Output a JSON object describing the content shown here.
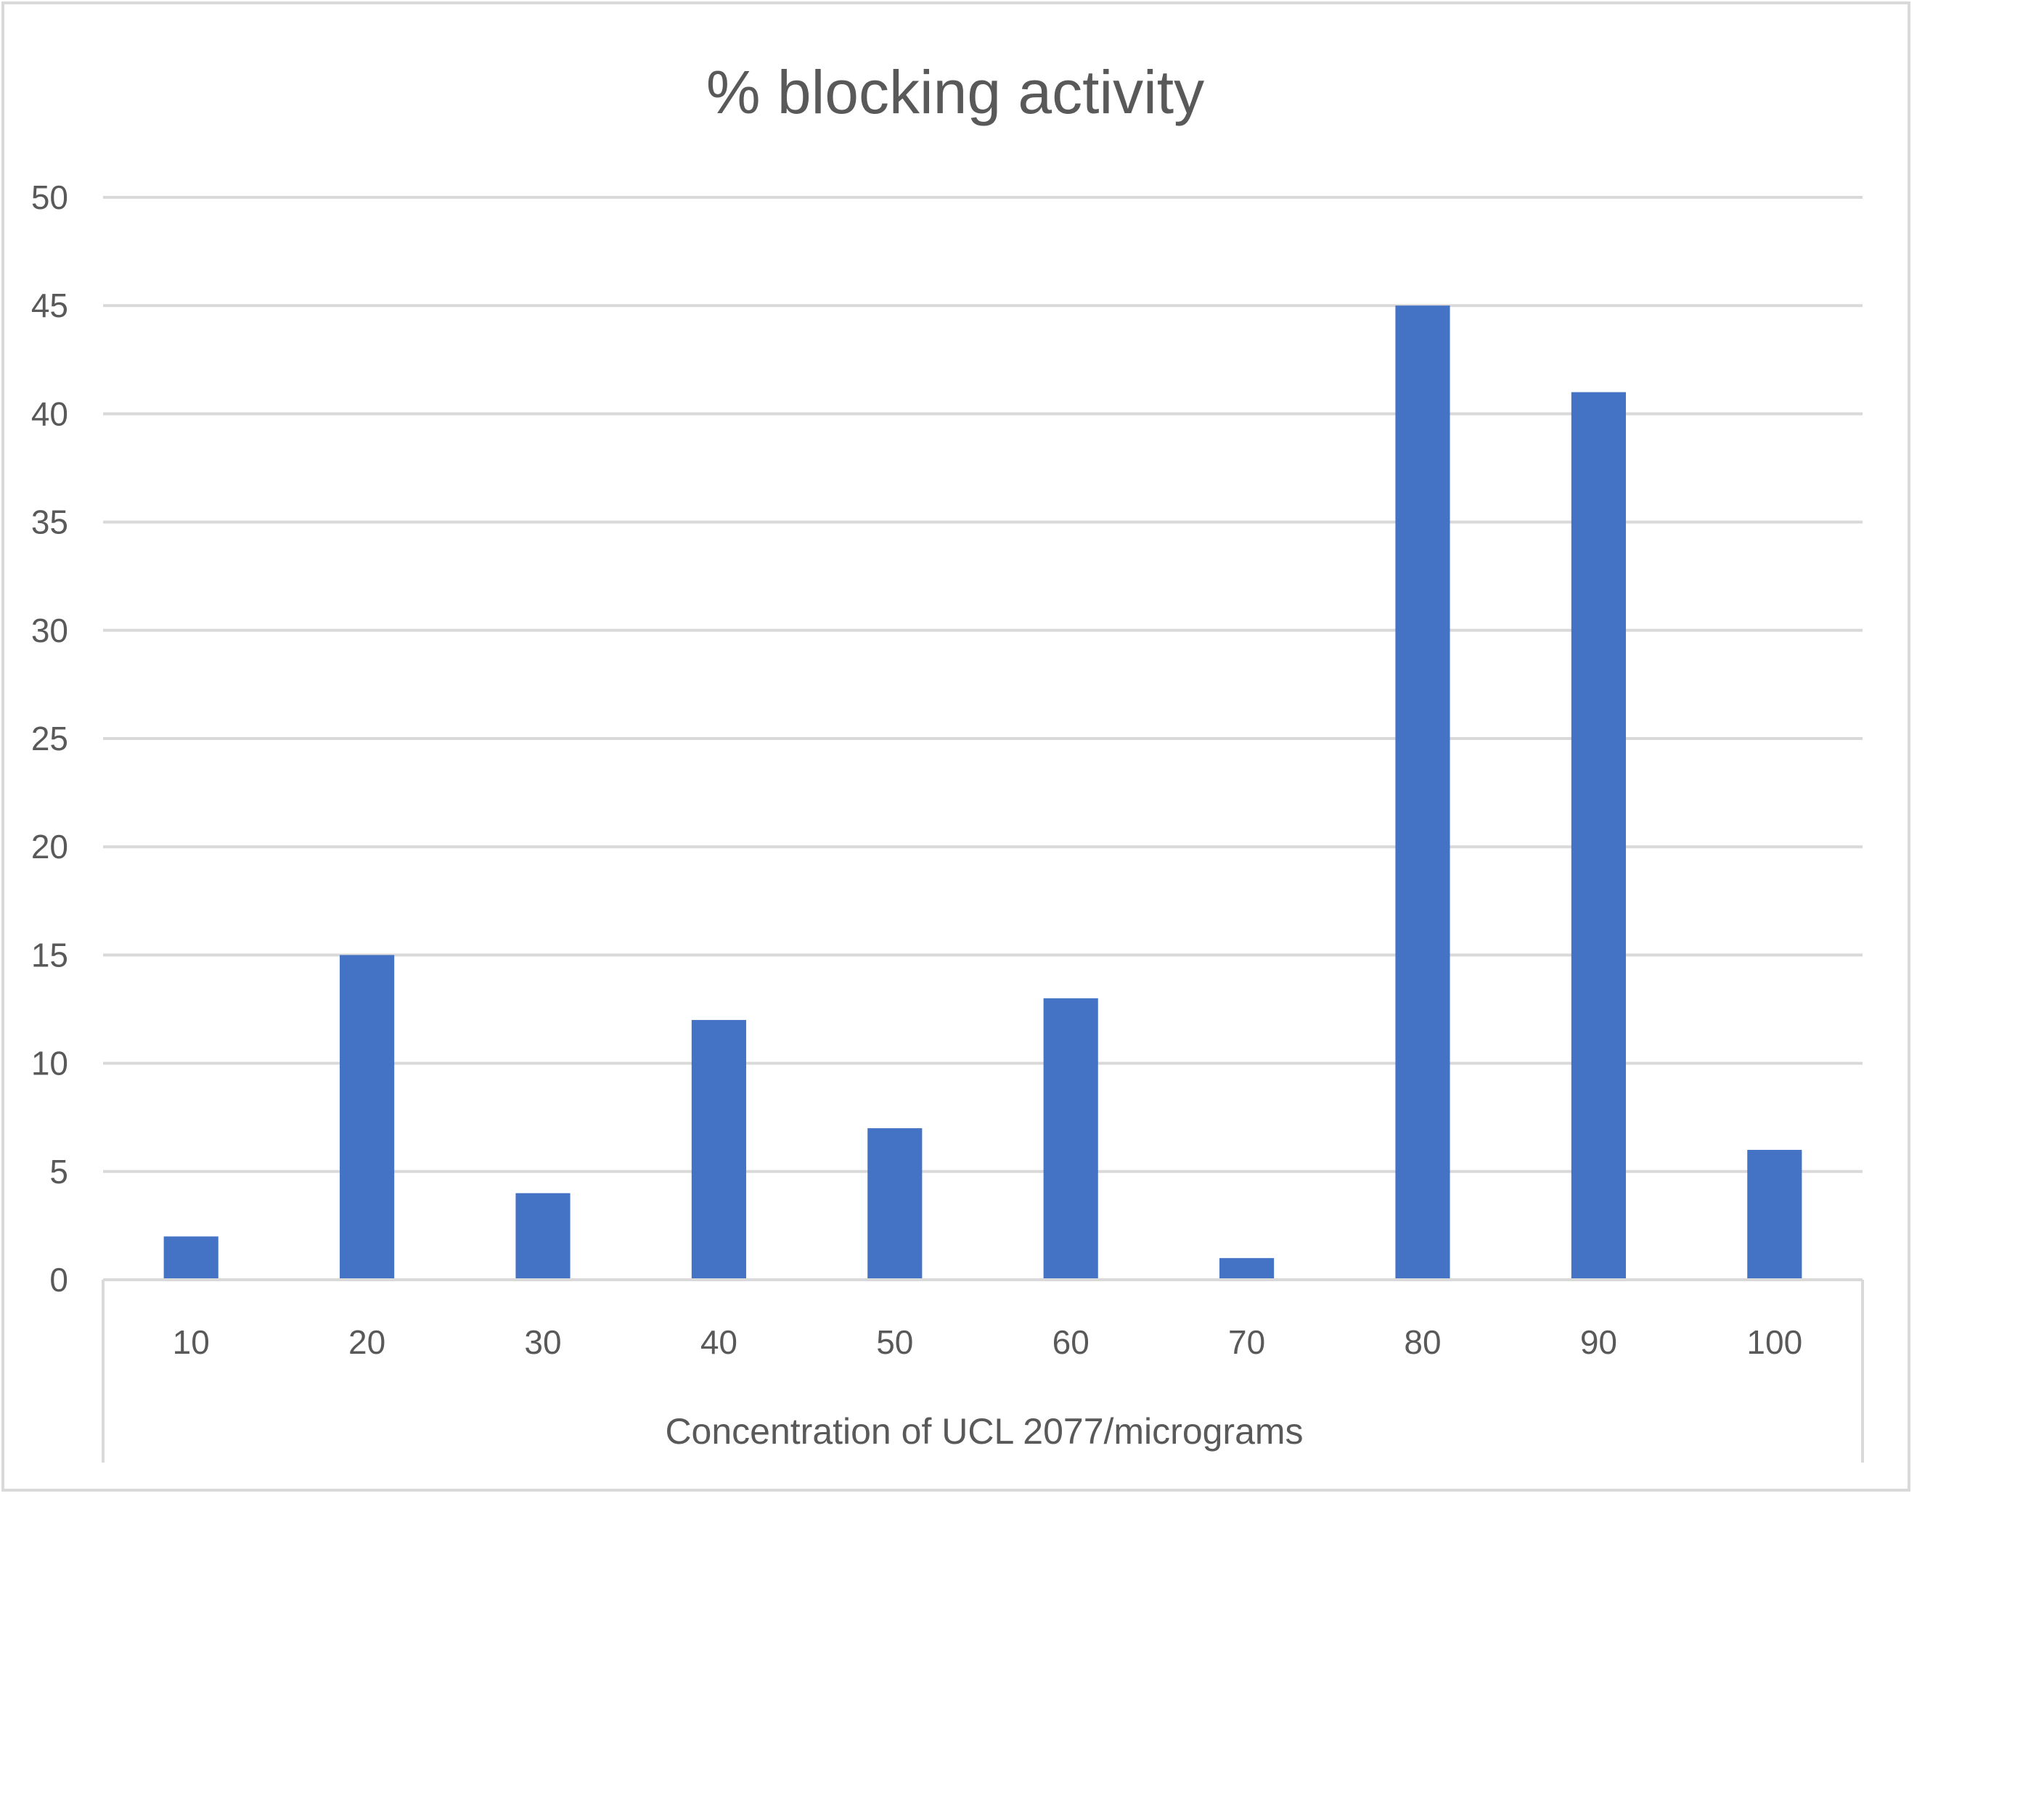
{
  "chart_data": {
    "type": "bar",
    "title": "% blocking activity",
    "xlabel": "Concentration of UCL 2077/micrograms",
    "ylabel": "",
    "categories": [
      "10",
      "20",
      "30",
      "40",
      "50",
      "60",
      "70",
      "80",
      "90",
      "100"
    ],
    "values": [
      2,
      15,
      4,
      12,
      7,
      13,
      1,
      45,
      41,
      6
    ],
    "ylim": [
      0,
      50
    ],
    "yticks": [
      "0",
      "5",
      "10",
      "15",
      "20",
      "25",
      "30",
      "35",
      "40",
      "45",
      "50"
    ],
    "grid": true,
    "legend": "none",
    "colors": {
      "bar": "#4472C4",
      "grid": "#d9d9d9",
      "text": "#595959",
      "frame": "#d9d9d9"
    }
  }
}
